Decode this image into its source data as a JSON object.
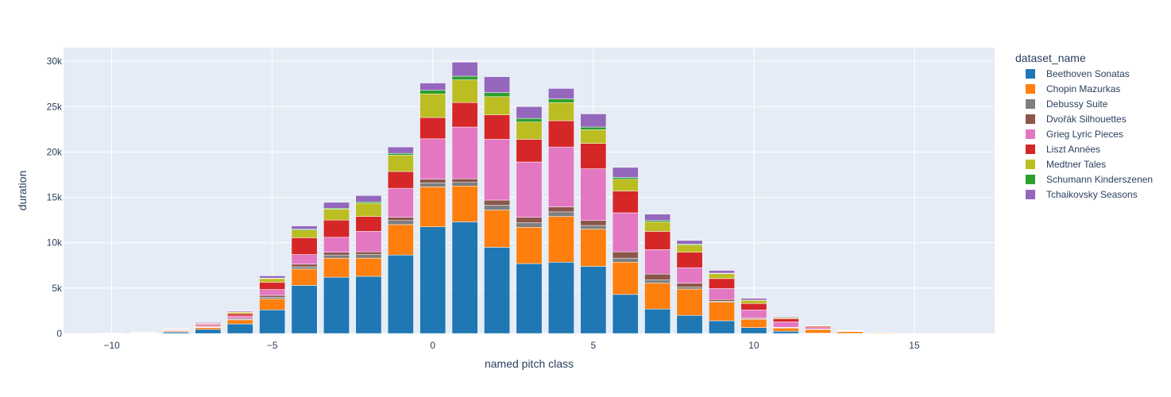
{
  "chart_data": {
    "type": "bar",
    "barmode": "stack",
    "xlabel": "named pitch class",
    "ylabel": "duration",
    "xlim": [
      -11.5,
      17.5
    ],
    "ylim": [
      0,
      31500
    ],
    "x_ticks": [
      -10,
      -5,
      0,
      5,
      10,
      15
    ],
    "x_tick_labels": [
      "−10",
      "−5",
      "0",
      "5",
      "10",
      "15"
    ],
    "y_ticks": [
      0,
      5000,
      10000,
      15000,
      20000,
      25000,
      30000
    ],
    "y_tick_labels": [
      "0",
      "5k",
      "10k",
      "15k",
      "20k",
      "25k",
      "30k"
    ],
    "grid": true,
    "plot_background": "#e5ecf6",
    "legend_title": "dataset_name",
    "legend_position": "right",
    "x": [
      -11,
      -10,
      -9,
      -8,
      -7,
      -6,
      -5,
      -4,
      -3,
      -2,
      -1,
      0,
      1,
      2,
      3,
      4,
      5,
      6,
      7,
      8,
      9,
      10,
      11,
      12,
      13,
      14,
      15,
      16
    ],
    "series": [
      {
        "name": "Beethoven Sonatas",
        "color": "#1f77b4",
        "values": [
          0,
          5,
          40,
          150,
          450,
          1050,
          2600,
          5300,
          6200,
          6300,
          8650,
          11750,
          12300,
          9500,
          7700,
          7850,
          7400,
          4300,
          2700,
          2000,
          1400,
          650,
          250,
          40,
          10,
          0,
          0,
          0
        ]
      },
      {
        "name": "Chopin Mazurkas",
        "color": "#ff7f0e",
        "values": [
          0,
          10,
          30,
          100,
          200,
          450,
          1200,
          1800,
          2100,
          2000,
          3350,
          4400,
          3950,
          4100,
          4000,
          5050,
          4100,
          3550,
          2850,
          2900,
          2050,
          900,
          350,
          400,
          200,
          80,
          20,
          0
        ]
      },
      {
        "name": "Debussy Suite",
        "color": "#7f7f7f",
        "values": [
          0,
          5,
          10,
          30,
          50,
          80,
          200,
          250,
          350,
          400,
          450,
          450,
          400,
          550,
          500,
          500,
          400,
          450,
          350,
          200,
          100,
          50,
          30,
          20,
          10,
          5,
          0,
          0
        ]
      },
      {
        "name": "Dvořák Silhouettes",
        "color": "#8c564b",
        "values": [
          0,
          5,
          10,
          30,
          50,
          100,
          200,
          300,
          300,
          300,
          350,
          400,
          400,
          550,
          600,
          550,
          550,
          700,
          650,
          450,
          200,
          100,
          50,
          30,
          10,
          5,
          0,
          0
        ]
      },
      {
        "name": "Grieg Lyric Pieces",
        "color": "#e377c2",
        "values": [
          0,
          10,
          30,
          80,
          150,
          250,
          650,
          1050,
          1650,
          2250,
          3200,
          4450,
          5700,
          6700,
          6100,
          6600,
          5700,
          4300,
          2700,
          1700,
          1200,
          900,
          600,
          150,
          50,
          10,
          0,
          0
        ]
      },
      {
        "name": "Liszt Années",
        "color": "#d62728",
        "values": [
          0,
          10,
          20,
          50,
          120,
          250,
          800,
          1850,
          1900,
          1650,
          1850,
          2350,
          2700,
          2700,
          2500,
          2900,
          2800,
          2400,
          2000,
          1700,
          1100,
          700,
          350,
          150,
          40,
          10,
          0,
          0
        ]
      },
      {
        "name": "Medtner Tales",
        "color": "#bcbd22",
        "values": [
          0,
          5,
          20,
          40,
          60,
          150,
          400,
          850,
          1200,
          1450,
          1800,
          2600,
          2500,
          2000,
          1900,
          2000,
          1500,
          1300,
          1050,
          800,
          550,
          350,
          100,
          50,
          20,
          5,
          0,
          0
        ]
      },
      {
        "name": "Schumann Kinderszenen",
        "color": "#2ca02c",
        "values": [
          0,
          0,
          0,
          10,
          20,
          40,
          50,
          100,
          100,
          150,
          200,
          400,
          400,
          450,
          400,
          400,
          300,
          200,
          150,
          100,
          50,
          30,
          10,
          0,
          0,
          0,
          0,
          0
        ]
      },
      {
        "name": "Tchaikovsky Seasons",
        "color": "#9467bd",
        "values": [
          0,
          10,
          30,
          50,
          100,
          100,
          250,
          350,
          650,
          700,
          700,
          800,
          1550,
          1750,
          1300,
          1150,
          1450,
          1100,
          700,
          400,
          300,
          200,
          80,
          20,
          10,
          5,
          0,
          0
        ]
      }
    ]
  }
}
